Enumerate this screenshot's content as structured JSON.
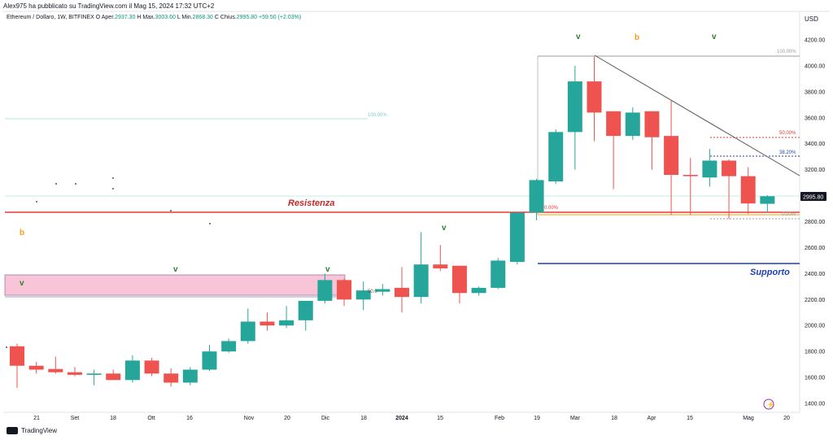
{
  "header": {
    "published_by": "Alex975 ha pubblicato su TradingView.com il Mag 15, 2024 17:32 UTC+2",
    "symbol_line": "Ethereum / Dollaro, 1W, BITFINEX",
    "ohlc": [
      {
        "label": "O",
        "value": ""
      },
      {
        "label": "Aper.",
        "value": "2937.30"
      },
      {
        "label": "H",
        "value": ""
      },
      {
        "label": "Max.",
        "value": "3003.60"
      },
      {
        "label": "L",
        "value": ""
      },
      {
        "label": "Min.",
        "value": "2868.30"
      },
      {
        "label": "C",
        "value": ""
      },
      {
        "label": "Chius.",
        "value": "2995.80"
      }
    ],
    "change": "+59.50 (+2.03%)"
  },
  "price_axis": {
    "currency": "USD",
    "ticks": [
      "4200.00",
      "4000.00",
      "3800.00",
      "3600.00",
      "3400.00",
      "3200.00",
      "3000.00",
      "2800.00",
      "2600.00",
      "2400.00",
      "2200.00",
      "2000.00",
      "1800.00",
      "1600.00",
      "1400.00"
    ],
    "last_price": "2995.80"
  },
  "time_axis": {
    "labels": [
      "21",
      "Set",
      "18",
      "Ott",
      "16",
      "Nov",
      "20",
      "Dic",
      "18",
      "2024",
      "15",
      "Feb",
      "19",
      "Mar",
      "18",
      "Apr",
      "15",
      "Mag",
      "20"
    ]
  },
  "annotations": {
    "resistance": "Resistenza",
    "support": "Supporto",
    "fib_100_upper": "100.00%",
    "fib_100_left": "100.00%",
    "fib_50": "50.00%",
    "fib_382": "38.20%",
    "fib_0_right": "0.00%",
    "fib_0_left": "0.00%",
    "fib_50_left": "50.0",
    "wave_marks": [
      "v",
      "b",
      "v",
      "v",
      "v",
      "v",
      "b",
      "v"
    ]
  },
  "footer": {
    "brand": "TradingView"
  },
  "colors": {
    "bull": "#26a69a",
    "bear": "#ef5350",
    "resistance": "#e53935",
    "support": "#1e3fb5",
    "zone_fill": "#f8c4d8",
    "wave_green": "#2e7d32",
    "wave_orange": "#f39c12",
    "trendline": "#555555",
    "fib_red": "#e53935",
    "fib_blue": "#1e3fb5"
  },
  "chart_data": {
    "type": "candlestick",
    "timeframe": "1W",
    "ylim": [
      1300,
      4300
    ],
    "candles": [
      {
        "o": 1840,
        "h": 1860,
        "l": 1520,
        "c": 1690
      },
      {
        "o": 1690,
        "h": 1720,
        "l": 1630,
        "c": 1660
      },
      {
        "o": 1665,
        "h": 1760,
        "l": 1630,
        "c": 1640
      },
      {
        "o": 1640,
        "h": 1680,
        "l": 1610,
        "c": 1620
      },
      {
        "o": 1620,
        "h": 1660,
        "l": 1540,
        "c": 1630
      },
      {
        "o": 1630,
        "h": 1660,
        "l": 1580,
        "c": 1580
      },
      {
        "o": 1580,
        "h": 1770,
        "l": 1560,
        "c": 1730
      },
      {
        "o": 1730,
        "h": 1750,
        "l": 1610,
        "c": 1630
      },
      {
        "o": 1630,
        "h": 1670,
        "l": 1530,
        "c": 1560
      },
      {
        "o": 1560,
        "h": 1680,
        "l": 1540,
        "c": 1660
      },
      {
        "o": 1660,
        "h": 1850,
        "l": 1650,
        "c": 1800
      },
      {
        "o": 1800,
        "h": 1900,
        "l": 1790,
        "c": 1880
      },
      {
        "o": 1880,
        "h": 2130,
        "l": 1860,
        "c": 2030
      },
      {
        "o": 2030,
        "h": 2100,
        "l": 1960,
        "c": 2000
      },
      {
        "o": 2000,
        "h": 2150,
        "l": 1980,
        "c": 2040
      },
      {
        "o": 2040,
        "h": 2180,
        "l": 1960,
        "c": 2190
      },
      {
        "o": 2190,
        "h": 2400,
        "l": 2170,
        "c": 2350
      },
      {
        "o": 2350,
        "h": 2360,
        "l": 2150,
        "c": 2200
      },
      {
        "o": 2200,
        "h": 2340,
        "l": 2120,
        "c": 2270
      },
      {
        "o": 2260,
        "h": 2320,
        "l": 2230,
        "c": 2280
      },
      {
        "o": 2290,
        "h": 2450,
        "l": 2100,
        "c": 2220
      },
      {
        "o": 2220,
        "h": 2720,
        "l": 2170,
        "c": 2470
      },
      {
        "o": 2470,
        "h": 2620,
        "l": 2420,
        "c": 2440
      },
      {
        "o": 2460,
        "h": 2460,
        "l": 2170,
        "c": 2250
      },
      {
        "o": 2250,
        "h": 2300,
        "l": 2230,
        "c": 2290
      },
      {
        "o": 2290,
        "h": 2520,
        "l": 2280,
        "c": 2500
      },
      {
        "o": 2490,
        "h": 2860,
        "l": 2470,
        "c": 2870
      },
      {
        "o": 2870,
        "h": 3130,
        "l": 2810,
        "c": 3120
      },
      {
        "o": 3110,
        "h": 3510,
        "l": 3090,
        "c": 3490
      },
      {
        "o": 3490,
        "h": 4000,
        "l": 3200,
        "c": 3880
      },
      {
        "o": 3880,
        "h": 4070,
        "l": 3420,
        "c": 3640
      },
      {
        "o": 3650,
        "h": 3650,
        "l": 3050,
        "c": 3460
      },
      {
        "o": 3460,
        "h": 3680,
        "l": 3430,
        "c": 3640
      },
      {
        "o": 3650,
        "h": 3650,
        "l": 3200,
        "c": 3450
      },
      {
        "o": 3460,
        "h": 3730,
        "l": 2850,
        "c": 3160
      },
      {
        "o": 3160,
        "h": 3290,
        "l": 2850,
        "c": 3150
      },
      {
        "o": 3140,
        "h": 3360,
        "l": 3070,
        "c": 3270
      },
      {
        "o": 3270,
        "h": 3280,
        "l": 2820,
        "c": 3150
      },
      {
        "o": 3150,
        "h": 3220,
        "l": 2860,
        "c": 2940
      },
      {
        "o": 2937.3,
        "h": 3003.6,
        "l": 2868.3,
        "c": 2995.8
      }
    ],
    "levels": {
      "resistance": 2870,
      "support": 2480,
      "fib_top": 4080,
      "fib_50": 3460,
      "fib_382": 3310,
      "fib_0": 2860
    }
  }
}
